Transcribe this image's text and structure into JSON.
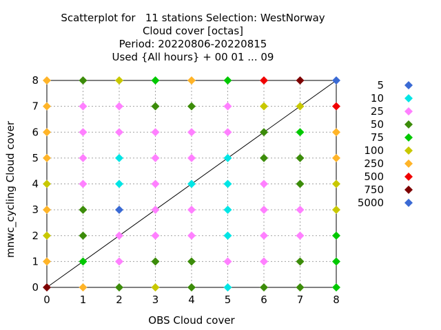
{
  "chart_data": {
    "type": "scatter",
    "title_lines": [
      "Scatterplot for   11 stations Selection: WestNorway",
      "Cloud cover [octas]",
      "Period: 20220806-20220815",
      "Used {All hours} + 00 01 ... 09"
    ],
    "xlabel": "OBS Cloud cover",
    "ylabel": "mnwc_cycling Cloud cover",
    "xlim": [
      0,
      8
    ],
    "ylim": [
      0,
      8
    ],
    "x_ticks": [
      "0",
      "1",
      "2",
      "3",
      "4",
      "5",
      "6",
      "7",
      "8"
    ],
    "y_ticks": [
      "0",
      "1",
      "2",
      "3",
      "4",
      "5",
      "6",
      "7",
      "8"
    ],
    "grid": true,
    "diagonal_line": true,
    "legend_position": "right",
    "legend": [
      {
        "label": "5",
        "color": "#3a6ad4"
      },
      {
        "label": "10",
        "color": "#00e5e5"
      },
      {
        "label": "25",
        "color": "#ff80ff"
      },
      {
        "label": "50",
        "color": "#3c8c0a"
      },
      {
        "label": "75",
        "color": "#00c800"
      },
      {
        "label": "100",
        "color": "#c8c800"
      },
      {
        "label": "250",
        "color": "#ffb428"
      },
      {
        "label": "500",
        "color": "#f00000"
      },
      {
        "label": "750",
        "color": "#7d0000"
      },
      {
        "label": "5000",
        "color": "#3a6ad4"
      }
    ],
    "rows": [
      {
        "y": 8,
        "cats": [
          "250",
          "50",
          "100",
          "75",
          "250",
          "75",
          "500",
          "750",
          "5"
        ]
      },
      {
        "y": 7,
        "cats": [
          "250",
          "25",
          "25",
          "50",
          "50",
          "25",
          "100",
          "100",
          "500"
        ]
      },
      {
        "y": 6,
        "cats": [
          "250",
          "25",
          "25",
          "25",
          "25",
          "25",
          "50",
          "75",
          "250"
        ]
      },
      {
        "y": 5,
        "cats": [
          "250",
          "25",
          "10",
          "25",
          "25",
          "10",
          "50",
          "50",
          "250"
        ]
      },
      {
        "y": 4,
        "cats": [
          "100",
          "25",
          "10",
          "25",
          "10",
          "10",
          "25",
          "50",
          "100"
        ]
      },
      {
        "y": 3,
        "cats": [
          "250",
          "50",
          "5",
          "25",
          "25",
          "10",
          "25",
          "25",
          "100"
        ]
      },
      {
        "y": 2,
        "cats": [
          "100",
          "50",
          "25",
          "25",
          "25",
          "10",
          "25",
          "25",
          "75"
        ]
      },
      {
        "y": 1,
        "cats": [
          "250",
          "75",
          "25",
          "50",
          "50",
          "25",
          "25",
          "50",
          "75"
        ]
      },
      {
        "y": 0,
        "cats": [
          "750",
          "250",
          "50",
          "100",
          "50",
          "10",
          "50",
          "50",
          "75"
        ]
      }
    ]
  }
}
